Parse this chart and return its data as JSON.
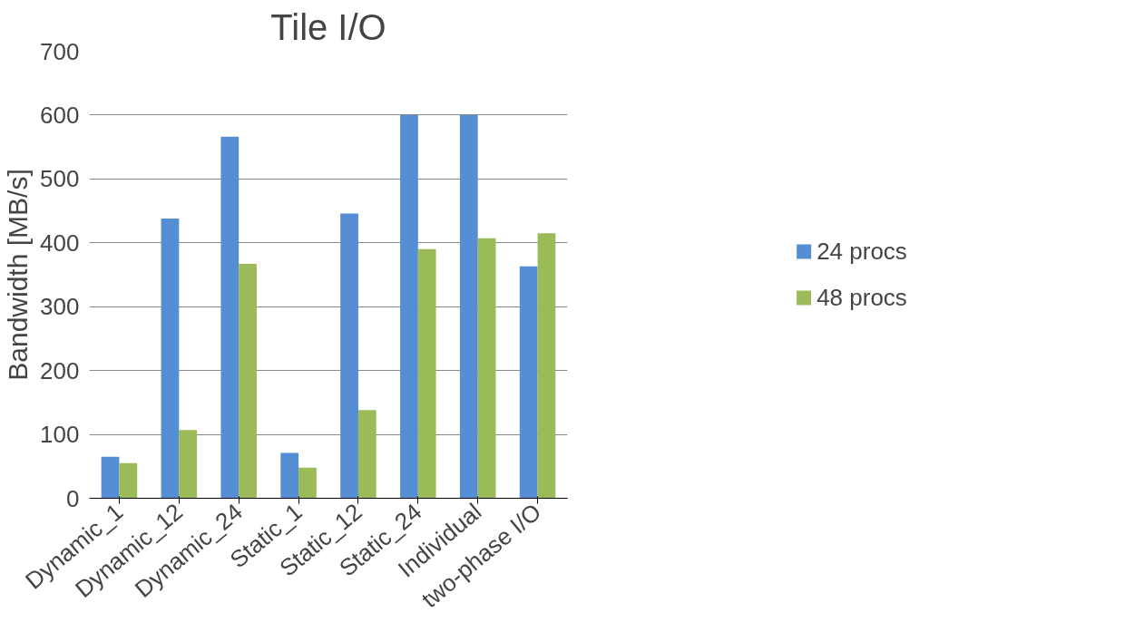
{
  "chart_data": {
    "type": "bar",
    "title": "Tile I/O",
    "ylabel": "Bandwidth [MB/s]",
    "categories": [
      "Dynamic_1",
      "Dynamic_12",
      "Dynamic_24",
      "Static_1",
      "Static_12",
      "Static_24",
      "Individual",
      "two-phase I/O"
    ],
    "series": [
      {
        "name": "24 procs",
        "color": "#558ed5",
        "values": [
          65,
          438,
          566,
          71,
          446,
          600,
          600,
          363
        ]
      },
      {
        "name": "48 procs",
        "color": "#9bbb59",
        "values": [
          55,
          107,
          367,
          48,
          138,
          390,
          407,
          415
        ]
      }
    ],
    "ylim": [
      0,
      700
    ],
    "yticks": [
      0,
      100,
      200,
      300,
      400,
      500,
      600,
      700
    ],
    "grid": "y",
    "legend": "right"
  }
}
